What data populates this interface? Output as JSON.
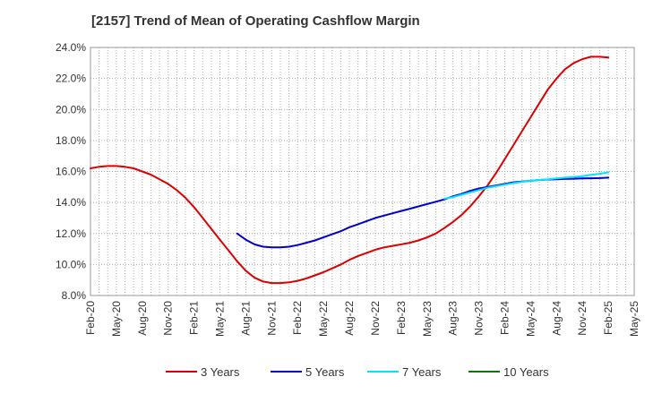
{
  "chart_data": {
    "type": "line",
    "title": "[2157]  Trend of Mean of Operating Cashflow Margin",
    "xlabel": "",
    "ylabel": "",
    "x_ticks": [
      "Feb-20",
      "May-20",
      "Aug-20",
      "Nov-20",
      "Feb-21",
      "May-21",
      "Aug-21",
      "Nov-21",
      "Feb-22",
      "May-22",
      "Aug-22",
      "Nov-22",
      "Feb-23",
      "May-23",
      "Aug-23",
      "Nov-23",
      "Feb-24",
      "May-24",
      "Aug-24",
      "Nov-24",
      "Feb-25",
      "May-25"
    ],
    "ylim": [
      8.0,
      24.0
    ],
    "y_ticks": [
      8,
      10,
      12,
      14,
      16,
      18,
      20,
      22,
      24
    ],
    "y_tick_format": "percent_1dp",
    "grid": true,
    "legend_position": "bottom",
    "series": [
      {
        "name": "3 Years",
        "color": "#dd0000",
        "points": [
          [
            "Feb-20",
            16.2
          ],
          [
            "Mar-20",
            16.3
          ],
          [
            "Apr-20",
            16.35
          ],
          [
            "May-20",
            16.35
          ],
          [
            "Jun-20",
            16.3
          ],
          [
            "Jul-20",
            16.2
          ],
          [
            "Aug-20",
            16.0
          ],
          [
            "Sep-20",
            15.8
          ],
          [
            "Oct-20",
            15.5
          ],
          [
            "Nov-20",
            15.2
          ],
          [
            "Dec-20",
            14.8
          ],
          [
            "Jan-21",
            14.3
          ],
          [
            "Feb-21",
            13.7
          ],
          [
            "Mar-21",
            13.0
          ],
          [
            "Apr-21",
            12.3
          ],
          [
            "May-21",
            11.6
          ],
          [
            "Jun-21",
            10.9
          ],
          [
            "Jul-21",
            10.2
          ],
          [
            "Aug-21",
            9.6
          ],
          [
            "Sep-21",
            9.15
          ],
          [
            "Oct-21",
            8.9
          ],
          [
            "Nov-21",
            8.8
          ],
          [
            "Dec-21",
            8.8
          ],
          [
            "Jan-22",
            8.85
          ],
          [
            "Feb-22",
            8.95
          ],
          [
            "Mar-22",
            9.1
          ],
          [
            "Apr-22",
            9.3
          ],
          [
            "May-22",
            9.5
          ],
          [
            "Jun-22",
            9.75
          ],
          [
            "Jul-22",
            10.0
          ],
          [
            "Aug-22",
            10.3
          ],
          [
            "Sep-22",
            10.55
          ],
          [
            "Oct-22",
            10.75
          ],
          [
            "Nov-22",
            10.95
          ],
          [
            "Dec-22",
            11.1
          ],
          [
            "Jan-23",
            11.2
          ],
          [
            "Feb-23",
            11.3
          ],
          [
            "Mar-23",
            11.4
          ],
          [
            "Apr-23",
            11.55
          ],
          [
            "May-23",
            11.75
          ],
          [
            "Jun-23",
            12.0
          ],
          [
            "Jul-23",
            12.35
          ],
          [
            "Aug-23",
            12.75
          ],
          [
            "Sep-23",
            13.2
          ],
          [
            "Oct-23",
            13.75
          ],
          [
            "Nov-23",
            14.4
          ],
          [
            "Dec-23",
            15.1
          ],
          [
            "Jan-24",
            15.9
          ],
          [
            "Feb-24",
            16.8
          ],
          [
            "Mar-24",
            17.7
          ],
          [
            "Apr-24",
            18.6
          ],
          [
            "May-24",
            19.5
          ],
          [
            "Jun-24",
            20.4
          ],
          [
            "Jul-24",
            21.3
          ],
          [
            "Aug-24",
            22.0
          ],
          [
            "Sep-24",
            22.6
          ],
          [
            "Oct-24",
            23.0
          ],
          [
            "Nov-24",
            23.25
          ],
          [
            "Dec-24",
            23.4
          ],
          [
            "Jan-25",
            23.4
          ],
          [
            "Feb-25",
            23.35
          ]
        ]
      },
      {
        "name": "5 Years",
        "color": "#0000cc",
        "points": [
          [
            "Jul-21",
            12.0
          ],
          [
            "Aug-21",
            11.6
          ],
          [
            "Sep-21",
            11.3
          ],
          [
            "Oct-21",
            11.15
          ],
          [
            "Nov-21",
            11.1
          ],
          [
            "Dec-21",
            11.1
          ],
          [
            "Jan-22",
            11.15
          ],
          [
            "Feb-22",
            11.25
          ],
          [
            "Mar-22",
            11.4
          ],
          [
            "Apr-22",
            11.55
          ],
          [
            "May-22",
            11.75
          ],
          [
            "Jun-22",
            11.95
          ],
          [
            "Jul-22",
            12.15
          ],
          [
            "Aug-22",
            12.4
          ],
          [
            "Sep-22",
            12.6
          ],
          [
            "Oct-22",
            12.8
          ],
          [
            "Nov-22",
            13.0
          ],
          [
            "Dec-22",
            13.15
          ],
          [
            "Jan-23",
            13.3
          ],
          [
            "Feb-23",
            13.45
          ],
          [
            "Mar-23",
            13.6
          ],
          [
            "Apr-23",
            13.75
          ],
          [
            "May-23",
            13.9
          ],
          [
            "Jun-23",
            14.05
          ],
          [
            "Jul-23",
            14.2
          ],
          [
            "Aug-23",
            14.4
          ],
          [
            "Sep-23",
            14.55
          ],
          [
            "Oct-23",
            14.75
          ],
          [
            "Nov-23",
            14.9
          ],
          [
            "Dec-23",
            15.0
          ],
          [
            "Jan-24",
            15.1
          ],
          [
            "Feb-24",
            15.2
          ],
          [
            "Mar-24",
            15.3
          ],
          [
            "Apr-24",
            15.35
          ],
          [
            "May-24",
            15.4
          ],
          [
            "Jun-24",
            15.45
          ],
          [
            "Jul-24",
            15.48
          ],
          [
            "Aug-24",
            15.5
          ],
          [
            "Sep-24",
            15.52
          ],
          [
            "Oct-24",
            15.53
          ],
          [
            "Nov-24",
            15.55
          ],
          [
            "Dec-24",
            15.56
          ],
          [
            "Jan-25",
            15.57
          ],
          [
            "Feb-25",
            15.6
          ]
        ]
      },
      {
        "name": "7 Years",
        "color": "#00e5ff",
        "points": [
          [
            "Jul-23",
            14.25
          ],
          [
            "Aug-23",
            14.35
          ],
          [
            "Sep-23",
            14.5
          ],
          [
            "Oct-23",
            14.65
          ],
          [
            "Nov-23",
            14.8
          ],
          [
            "Dec-23",
            14.95
          ],
          [
            "Jan-24",
            15.05
          ],
          [
            "Feb-24",
            15.15
          ],
          [
            "Mar-24",
            15.25
          ],
          [
            "Apr-24",
            15.33
          ],
          [
            "May-24",
            15.4
          ],
          [
            "Jun-24",
            15.45
          ],
          [
            "Jul-24",
            15.5
          ],
          [
            "Aug-24",
            15.55
          ],
          [
            "Sep-24",
            15.6
          ],
          [
            "Oct-24",
            15.65
          ],
          [
            "Nov-24",
            15.7
          ],
          [
            "Dec-24",
            15.78
          ],
          [
            "Jan-25",
            15.85
          ],
          [
            "Feb-25",
            15.95
          ]
        ]
      },
      {
        "name": "10 Years",
        "color": "#008000",
        "points": []
      }
    ]
  }
}
